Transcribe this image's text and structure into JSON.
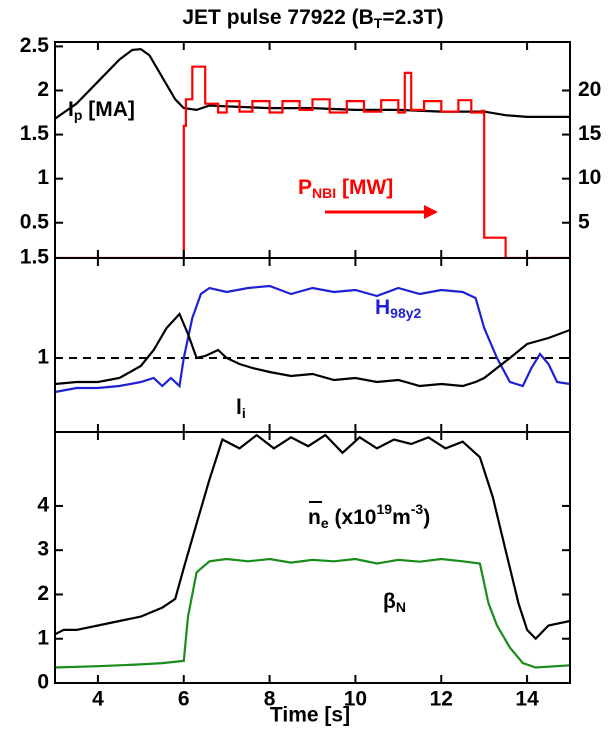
{
  "chart_data": [
    {
      "type": "line",
      "title": [
        {
          "text": "JET pulse 77922 (B"
        },
        {
          "text": "T",
          "script": "sub"
        },
        {
          "text": "=2.3T)"
        }
      ],
      "xlim": [
        3,
        15
      ],
      "xticks": [
        4,
        6,
        8,
        10,
        12,
        14
      ],
      "ylim": [
        0.1,
        2.55
      ],
      "yticks": [
        0.5,
        1,
        1.5,
        2,
        2.5
      ],
      "y2lim": [
        1,
        25.5
      ],
      "y2ticks": [
        5,
        10,
        15,
        20
      ],
      "series": [
        {
          "name": "Ip",
          "color": "#000000",
          "x": [
            3,
            3.5,
            4,
            4.5,
            4.8,
            5,
            5.2,
            5.5,
            5.8,
            6,
            6.3,
            6.6,
            7,
            8,
            9,
            10,
            11,
            12,
            13,
            13.5,
            14,
            15
          ],
          "values": [
            1.68,
            1.85,
            2.1,
            2.35,
            2.46,
            2.47,
            2.4,
            2.15,
            1.9,
            1.8,
            1.78,
            1.83,
            1.82,
            1.8,
            1.8,
            1.78,
            1.78,
            1.76,
            1.76,
            1.72,
            1.7,
            1.7
          ]
        },
        {
          "name": "PNBI",
          "color": "#ff0000",
          "axis": "y2",
          "x": [
            3,
            6,
            6,
            6.05,
            6.05,
            6.2,
            6.2,
            6.5,
            6.5,
            6.8,
            6.8,
            7.0,
            7.0,
            7.3,
            7.3,
            7.6,
            7.6,
            8.0,
            8.0,
            8.3,
            8.3,
            8.7,
            8.7,
            9.0,
            9.0,
            9.4,
            9.4,
            9.8,
            9.8,
            10.2,
            10.2,
            10.6,
            10.6,
            11.0,
            11.0,
            11.15,
            11.15,
            11.3,
            11.3,
            11.6,
            11.6,
            12.0,
            12.0,
            12.4,
            12.4,
            12.7,
            12.7,
            12.95,
            12.95,
            13.0,
            13.0,
            13.5,
            13.5,
            15
          ],
          "values": [
            1,
            1,
            16,
            16,
            19,
            19,
            22.7,
            22.7,
            18.5,
            18.5,
            17.5,
            17.5,
            18.8,
            18.8,
            17.6,
            17.6,
            18.8,
            18.8,
            17.5,
            17.5,
            18.8,
            18.8,
            17.8,
            17.8,
            19.0,
            19.0,
            17.5,
            17.5,
            18.8,
            18.8,
            17.6,
            17.6,
            18.9,
            18.9,
            17.5,
            17.5,
            22,
            22,
            17.8,
            17.8,
            18.8,
            18.8,
            17.6,
            17.6,
            18.9,
            18.9,
            17.5,
            17.5,
            17.7,
            17.7,
            3.3,
            3.3,
            1,
            1
          ]
        }
      ],
      "annotations": [
        {
          "parts": [
            {
              "text": "I"
            },
            {
              "text": "p",
              "script": "sub"
            },
            {
              "text": " [MA]"
            }
          ],
          "color": "#000000"
        },
        {
          "parts": [
            {
              "text": "P"
            },
            {
              "text": "NBI",
              "script": "sub"
            },
            {
              "text": " [MW]"
            }
          ],
          "color": "#ff0000"
        }
      ]
    },
    {
      "type": "line",
      "xlim": [
        3,
        15
      ],
      "xticks": [
        4,
        6,
        8,
        10,
        12,
        14
      ],
      "ylim": [
        0.63,
        1.5
      ],
      "yticks": [
        1,
        1.5
      ],
      "hline": 1,
      "series": [
        {
          "name": "H98y2",
          "color": "#1f1fd6",
          "x": [
            3,
            3.5,
            4,
            4.5,
            5,
            5.3,
            5.5,
            5.7,
            5.9,
            6.0,
            6.2,
            6.4,
            6.6,
            7,
            7.5,
            8,
            8.5,
            9,
            9.5,
            10,
            10.5,
            11,
            11.5,
            12,
            12.5,
            12.8,
            13,
            13.3,
            13.6,
            13.9,
            14.1,
            14.3,
            14.5,
            14.7,
            15
          ],
          "values": [
            0.83,
            0.85,
            0.85,
            0.86,
            0.88,
            0.9,
            0.86,
            0.9,
            0.86,
            1.0,
            1.2,
            1.32,
            1.35,
            1.33,
            1.35,
            1.36,
            1.32,
            1.35,
            1.33,
            1.34,
            1.31,
            1.35,
            1.32,
            1.34,
            1.33,
            1.3,
            1.15,
            1.0,
            0.88,
            0.86,
            0.95,
            1.02,
            0.97,
            0.88,
            0.87
          ]
        },
        {
          "name": "li",
          "color": "#000000",
          "x": [
            3,
            3.5,
            4,
            4.5,
            5,
            5.3,
            5.6,
            5.9,
            6.1,
            6.3,
            6.5,
            6.8,
            7,
            7.3,
            7.6,
            8,
            8.5,
            9,
            9.5,
            10,
            10.5,
            11,
            11.5,
            12,
            12.5,
            12.8,
            13,
            13.3,
            13.6,
            14,
            14.5,
            15
          ],
          "values": [
            0.87,
            0.88,
            0.88,
            0.9,
            0.96,
            1.04,
            1.15,
            1.22,
            1.12,
            1.0,
            1.01,
            1.04,
            1.0,
            0.97,
            0.95,
            0.93,
            0.91,
            0.92,
            0.89,
            0.9,
            0.88,
            0.89,
            0.86,
            0.87,
            0.86,
            0.88,
            0.9,
            0.95,
            1.0,
            1.07,
            1.1,
            1.14
          ]
        }
      ],
      "annotations": [
        {
          "parts": [
            {
              "text": "H"
            },
            {
              "text": "98y2",
              "script": "sub"
            }
          ],
          "color": "#1f1fd6"
        },
        {
          "parts": [
            {
              "text": "l"
            },
            {
              "text": "i",
              "script": "sub"
            }
          ],
          "color": "#000000"
        }
      ]
    },
    {
      "type": "line",
      "xlim": [
        3,
        15
      ],
      "xticks": [
        4,
        6,
        8,
        10,
        12,
        14
      ],
      "xlabel": "Time [s]",
      "ylim": [
        0,
        5.67
      ],
      "yticks": [
        0,
        1,
        2,
        3,
        4
      ],
      "series": [
        {
          "name": "ne",
          "color": "#000000",
          "x": [
            3,
            3.2,
            3.5,
            4,
            4.5,
            5,
            5.5,
            5.8,
            6,
            6.3,
            6.6,
            6.9,
            7.3,
            7.7,
            8.1,
            8.5,
            8.9,
            9.3,
            9.7,
            10.1,
            10.5,
            10.9,
            11.3,
            11.7,
            12.1,
            12.5,
            12.9,
            13.2,
            13.5,
            13.8,
            14,
            14.2,
            14.5,
            15
          ],
          "values": [
            1.1,
            1.2,
            1.2,
            1.3,
            1.4,
            1.5,
            1.7,
            1.9,
            2.6,
            3.6,
            4.6,
            5.5,
            5.3,
            5.6,
            5.3,
            5.55,
            5.35,
            5.6,
            5.2,
            5.55,
            5.3,
            5.5,
            5.4,
            5.55,
            5.3,
            5.45,
            5.1,
            4.2,
            3.0,
            1.8,
            1.2,
            1.0,
            1.3,
            1.4
          ]
        },
        {
          "name": "betaN",
          "color": "#1a8c1a",
          "x": [
            3,
            4,
            5,
            5.5,
            6,
            6.1,
            6.3,
            6.6,
            7,
            7.5,
            8,
            8.5,
            9,
            9.5,
            10,
            10.5,
            11,
            11.5,
            12,
            12.5,
            12.9,
            13.1,
            13.3,
            13.6,
            13.9,
            14.2,
            15
          ],
          "values": [
            0.35,
            0.38,
            0.42,
            0.45,
            0.5,
            1.5,
            2.5,
            2.75,
            2.8,
            2.75,
            2.8,
            2.72,
            2.78,
            2.75,
            2.8,
            2.7,
            2.78,
            2.74,
            2.8,
            2.75,
            2.7,
            1.8,
            1.3,
            0.8,
            0.45,
            0.35,
            0.4
          ]
        }
      ],
      "annotations": [
        {
          "parts": [
            {
              "text": "n"
            },
            {
              "text": "e",
              "script": "sub"
            },
            {
              "text": " (x10"
            },
            {
              "text": "19",
              "script": "sup"
            },
            {
              "text": "m"
            },
            {
              "text": "-3",
              "script": "sup"
            },
            {
              "text": ")"
            }
          ],
          "color": "#000000"
        },
        {
          "parts": [
            {
              "text": "β"
            },
            {
              "text": "N",
              "script": "sub"
            }
          ],
          "color": "#000000"
        }
      ]
    }
  ]
}
